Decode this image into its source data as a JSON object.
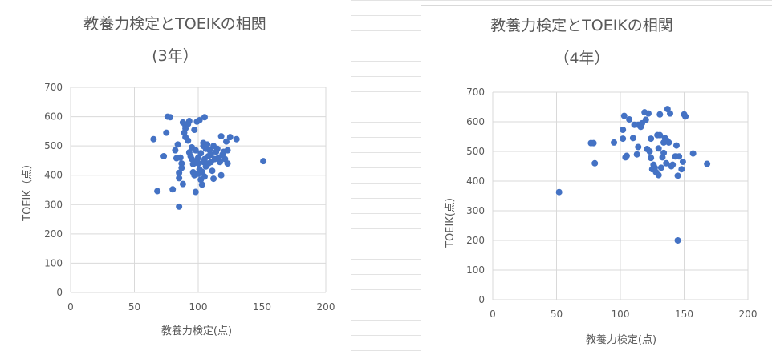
{
  "chart_data": [
    {
      "type": "scatter",
      "title": "教養力検定とTOEIKの相関",
      "subtitle": "(3年）",
      "xlabel": "教養力検定(点)",
      "ylabel": "TOEIK（点）",
      "xlim": [
        0,
        200
      ],
      "ylim": [
        0,
        700
      ],
      "xticks": [
        "0",
        "50",
        "100",
        "150",
        "200"
      ],
      "yticks": [
        "0",
        "100",
        "200",
        "300",
        "400",
        "500",
        "600",
        "700"
      ],
      "grid": true,
      "color": "#4472c4",
      "points": [
        [
          65,
          523
        ],
        [
          68,
          346
        ],
        [
          73,
          465
        ],
        [
          75,
          545
        ],
        [
          76,
          600
        ],
        [
          78,
          598
        ],
        [
          80,
          352
        ],
        [
          82,
          485
        ],
        [
          83,
          458
        ],
        [
          84,
          505
        ],
        [
          85,
          293
        ],
        [
          85,
          408
        ],
        [
          85,
          390
        ],
        [
          86,
          460
        ],
        [
          87,
          440
        ],
        [
          87,
          425
        ],
        [
          88,
          580
        ],
        [
          89,
          545
        ],
        [
          90,
          560
        ],
        [
          90,
          568
        ],
        [
          90,
          530
        ],
        [
          92,
          575
        ],
        [
          92,
          518
        ],
        [
          93,
          585
        ],
        [
          93,
          478
        ],
        [
          94,
          465
        ],
        [
          95,
          455
        ],
        [
          95,
          495
        ],
        [
          96,
          410
        ],
        [
          96,
          438
        ],
        [
          97,
          555
        ],
        [
          97,
          445
        ],
        [
          98,
          485
        ],
        [
          98,
          343
        ],
        [
          99,
          583
        ],
        [
          99,
          450
        ],
        [
          100,
          405
        ],
        [
          100,
          440
        ],
        [
          100,
          460
        ],
        [
          101,
          420
        ],
        [
          101,
          588
        ],
        [
          102,
          475
        ],
        [
          102,
          385
        ],
        [
          103,
          368
        ],
        [
          103,
          412
        ],
        [
          104,
          500
        ],
        [
          104,
          510
        ],
        [
          104,
          445
        ],
        [
          105,
          455
        ],
        [
          105,
          395
        ],
        [
          105,
          598
        ],
        [
          106,
          430
        ],
        [
          106,
          490
        ],
        [
          107,
          505
        ],
        [
          108,
          440
        ],
        [
          108,
          465
        ],
        [
          109,
          485
        ],
        [
          110,
          445
        ],
        [
          110,
          470
        ],
        [
          111,
          415
        ],
        [
          112,
          500
        ],
        [
          112,
          388
        ],
        [
          113,
          455
        ],
        [
          114,
          480
        ],
        [
          115,
          490
        ],
        [
          116,
          460
        ],
        [
          117,
          445
        ],
        [
          118,
          400
        ],
        [
          118,
          533
        ],
        [
          119,
          470
        ],
        [
          120,
          480
        ],
        [
          121,
          455
        ],
        [
          122,
          515
        ],
        [
          123,
          440
        ],
        [
          123,
          485
        ],
        [
          125,
          530
        ],
        [
          130,
          523
        ],
        [
          151,
          448
        ],
        [
          88,
          370
        ],
        [
          97,
          400
        ]
      ]
    },
    {
      "type": "scatter",
      "title": "教養力検定とTOEIKの相関",
      "subtitle": "（4年）",
      "xlabel": "教養力検定(点)",
      "ylabel": "TOEIK(",
      "ylabel2": "点）",
      "xlim": [
        0,
        200
      ],
      "ylim": [
        0,
        700
      ],
      "xticks": [
        "0",
        "50",
        "100",
        "150",
        "200"
      ],
      "yticks": [
        "0",
        "100",
        "200",
        "300",
        "400",
        "500",
        "600",
        "700"
      ],
      "grid": true,
      "color": "#4472c4",
      "points": [
        [
          52,
          363
        ],
        [
          77,
          528
        ],
        [
          79,
          528
        ],
        [
          80,
          460
        ],
        [
          95,
          530
        ],
        [
          102,
          573
        ],
        [
          102,
          543
        ],
        [
          103,
          620
        ],
        [
          104,
          480
        ],
        [
          105,
          485
        ],
        [
          107,
          608
        ],
        [
          110,
          545
        ],
        [
          111,
          590
        ],
        [
          113,
          490
        ],
        [
          114,
          515
        ],
        [
          114,
          590
        ],
        [
          116,
          583
        ],
        [
          117,
          595
        ],
        [
          119,
          632
        ],
        [
          120,
          607
        ],
        [
          121,
          508
        ],
        [
          122,
          628
        ],
        [
          123,
          500
        ],
        [
          124,
          478
        ],
        [
          124,
          543
        ],
        [
          125,
          440
        ],
        [
          126,
          455
        ],
        [
          127,
          445
        ],
        [
          128,
          430
        ],
        [
          129,
          555
        ],
        [
          130,
          420
        ],
        [
          130,
          510
        ],
        [
          131,
          555
        ],
        [
          131,
          625
        ],
        [
          132,
          445
        ],
        [
          133,
          480
        ],
        [
          134,
          495
        ],
        [
          134,
          530
        ],
        [
          135,
          545
        ],
        [
          136,
          460
        ],
        [
          137,
          643
        ],
        [
          137,
          535
        ],
        [
          138,
          530
        ],
        [
          139,
          628
        ],
        [
          140,
          450
        ],
        [
          141,
          455
        ],
        [
          143,
          483
        ],
        [
          144,
          520
        ],
        [
          145,
          200
        ],
        [
          145,
          418
        ],
        [
          146,
          483
        ],
        [
          148,
          440
        ],
        [
          149,
          465
        ],
        [
          150,
          625
        ],
        [
          151,
          618
        ],
        [
          157,
          493
        ],
        [
          168,
          458
        ]
      ]
    }
  ]
}
